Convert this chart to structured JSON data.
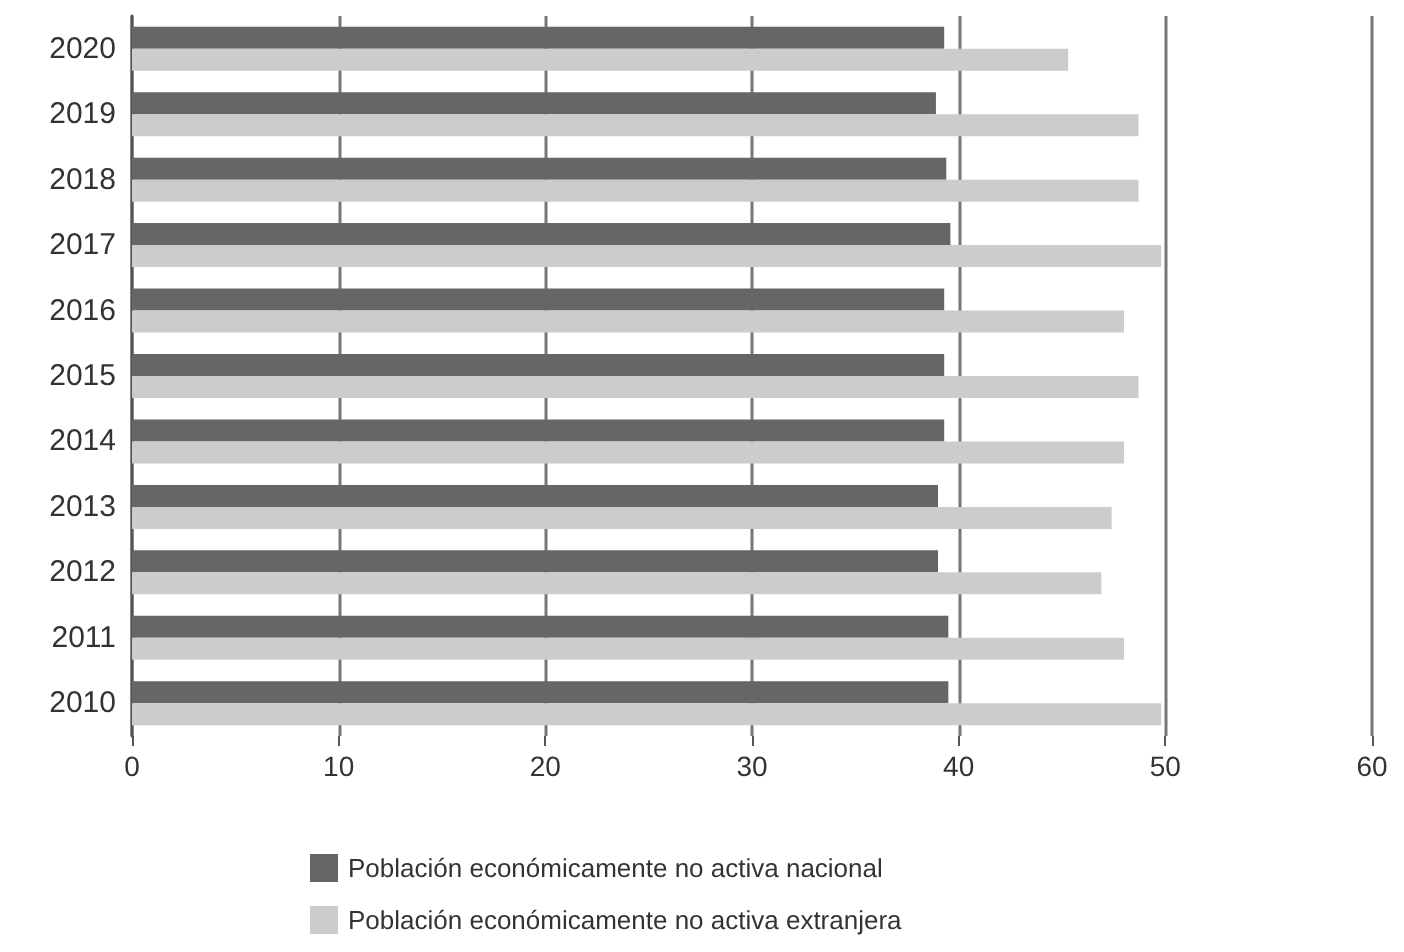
{
  "chart_data": {
    "type": "bar",
    "orientation": "horizontal",
    "categories": [
      "2020",
      "2019",
      "2018",
      "2017",
      "2016",
      "2015",
      "2014",
      "2013",
      "2012",
      "2011",
      "2010"
    ],
    "series": [
      {
        "name": "Población económicamente no activa nacional",
        "color": "#666666",
        "values": [
          39.3,
          38.9,
          39.4,
          39.6,
          39.3,
          39.3,
          39.3,
          39.0,
          39.0,
          39.5,
          39.5
        ]
      },
      {
        "name": "Población económicamente no activa extranjera",
        "color": "#cccccc",
        "values": [
          45.3,
          48.7,
          48.7,
          49.8,
          48.0,
          48.7,
          48.0,
          47.4,
          46.9,
          48.0,
          49.8
        ]
      }
    ],
    "xlim": [
      0,
      60
    ],
    "xticks": [
      0,
      10,
      20,
      30,
      40,
      50,
      60
    ],
    "grid": "x",
    "legend": "bottom"
  }
}
